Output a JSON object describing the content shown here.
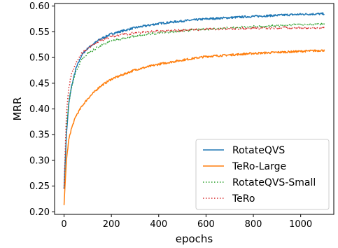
{
  "chart_data": {
    "type": "line",
    "title": "",
    "xlabel": "epochs",
    "ylabel": "MRR",
    "xlim": [
      -40,
      1140
    ],
    "ylim": [
      0.195,
      0.605
    ],
    "xticks": [
      0,
      200,
      400,
      600,
      800,
      1000
    ],
    "yticks": [
      0.2,
      0.25,
      0.3,
      0.35,
      0.4,
      0.45,
      0.5,
      0.55,
      0.6
    ],
    "ytick_labels": [
      "0.20",
      "0.25",
      "0.30",
      "0.35",
      "0.40",
      "0.45",
      "0.50",
      "0.55",
      "0.60"
    ],
    "grid": false,
    "legend_position": "lower-right",
    "series": [
      {
        "name": "RotateQVS",
        "color": "#1f77b4",
        "style": "solid",
        "x": [
          0,
          10,
          20,
          30,
          50,
          75,
          100,
          150,
          200,
          300,
          400,
          500,
          600,
          800,
          1000,
          1100
        ],
        "y": [
          0.245,
          0.35,
          0.41,
          0.44,
          0.478,
          0.505,
          0.518,
          0.535,
          0.546,
          0.558,
          0.566,
          0.571,
          0.575,
          0.58,
          0.584,
          0.585
        ]
      },
      {
        "name": "TeRo-Large",
        "color": "#ff7f0e",
        "style": "solid",
        "x": [
          0,
          10,
          20,
          30,
          50,
          75,
          100,
          150,
          200,
          300,
          400,
          500,
          600,
          800,
          1000,
          1100
        ],
        "y": [
          0.213,
          0.3,
          0.34,
          0.36,
          0.386,
          0.405,
          0.42,
          0.443,
          0.458,
          0.476,
          0.487,
          0.495,
          0.502,
          0.508,
          0.512,
          0.514
        ]
      },
      {
        "name": "RotateQVS-Small",
        "color": "#2ca02c",
        "style": "dotted",
        "x": [
          0,
          10,
          20,
          30,
          50,
          75,
          100,
          150,
          200,
          300,
          400,
          500,
          600,
          800,
          1000,
          1100
        ],
        "y": [
          0.245,
          0.36,
          0.41,
          0.44,
          0.472,
          0.496,
          0.508,
          0.522,
          0.532,
          0.542,
          0.548,
          0.552,
          0.555,
          0.56,
          0.564,
          0.565
        ]
      },
      {
        "name": "TeRo",
        "color": "#d62728",
        "style": "dotted",
        "x": [
          0,
          10,
          20,
          30,
          50,
          75,
          100,
          150,
          200,
          300,
          400,
          500,
          600,
          800,
          1000,
          1100
        ],
        "y": [
          0.245,
          0.39,
          0.44,
          0.465,
          0.489,
          0.508,
          0.518,
          0.532,
          0.541,
          0.548,
          0.551,
          0.553,
          0.555,
          0.557,
          0.558,
          0.557
        ]
      }
    ]
  }
}
